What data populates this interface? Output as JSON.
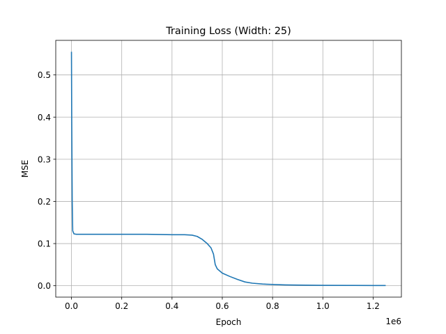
{
  "chart_data": {
    "type": "line",
    "title": "Training Loss (Width: 25)",
    "xlabel": "Epoch",
    "ylabel": "MSE",
    "x_offset_label": "1e6",
    "xlim": [
      -62500,
      1312500
    ],
    "ylim": [
      -0.027,
      0.582
    ],
    "xticks": [
      0,
      200000,
      400000,
      600000,
      800000,
      1000000,
      1200000
    ],
    "xtick_labels": [
      "0.0",
      "0.2",
      "0.4",
      "0.6",
      "0.8",
      "1.0",
      "1.2"
    ],
    "yticks": [
      0.0,
      0.1,
      0.2,
      0.3,
      0.4,
      0.5
    ],
    "ytick_labels": [
      "0.0",
      "0.1",
      "0.2",
      "0.3",
      "0.4",
      "0.5"
    ],
    "grid": true,
    "line_color": "#1f77b4",
    "series": [
      {
        "x": [
          0,
          1000,
          3000,
          5000,
          10000,
          20000,
          100000,
          200000,
          300000,
          400000,
          450000,
          480000,
          500000,
          520000,
          540000,
          555000,
          565000,
          572000,
          580000,
          600000,
          630000,
          660000,
          690000,
          720000,
          760000,
          800000,
          850000,
          900000,
          1000000,
          1100000,
          1200000,
          1250000
        ],
        "y": [
          0.555,
          0.4,
          0.2,
          0.13,
          0.123,
          0.122,
          0.122,
          0.122,
          0.122,
          0.121,
          0.121,
          0.12,
          0.117,
          0.11,
          0.1,
          0.09,
          0.075,
          0.05,
          0.04,
          0.03,
          0.022,
          0.015,
          0.009,
          0.006,
          0.004,
          0.003,
          0.002,
          0.0015,
          0.001,
          0.0008,
          0.0006,
          0.0005
        ]
      }
    ]
  }
}
